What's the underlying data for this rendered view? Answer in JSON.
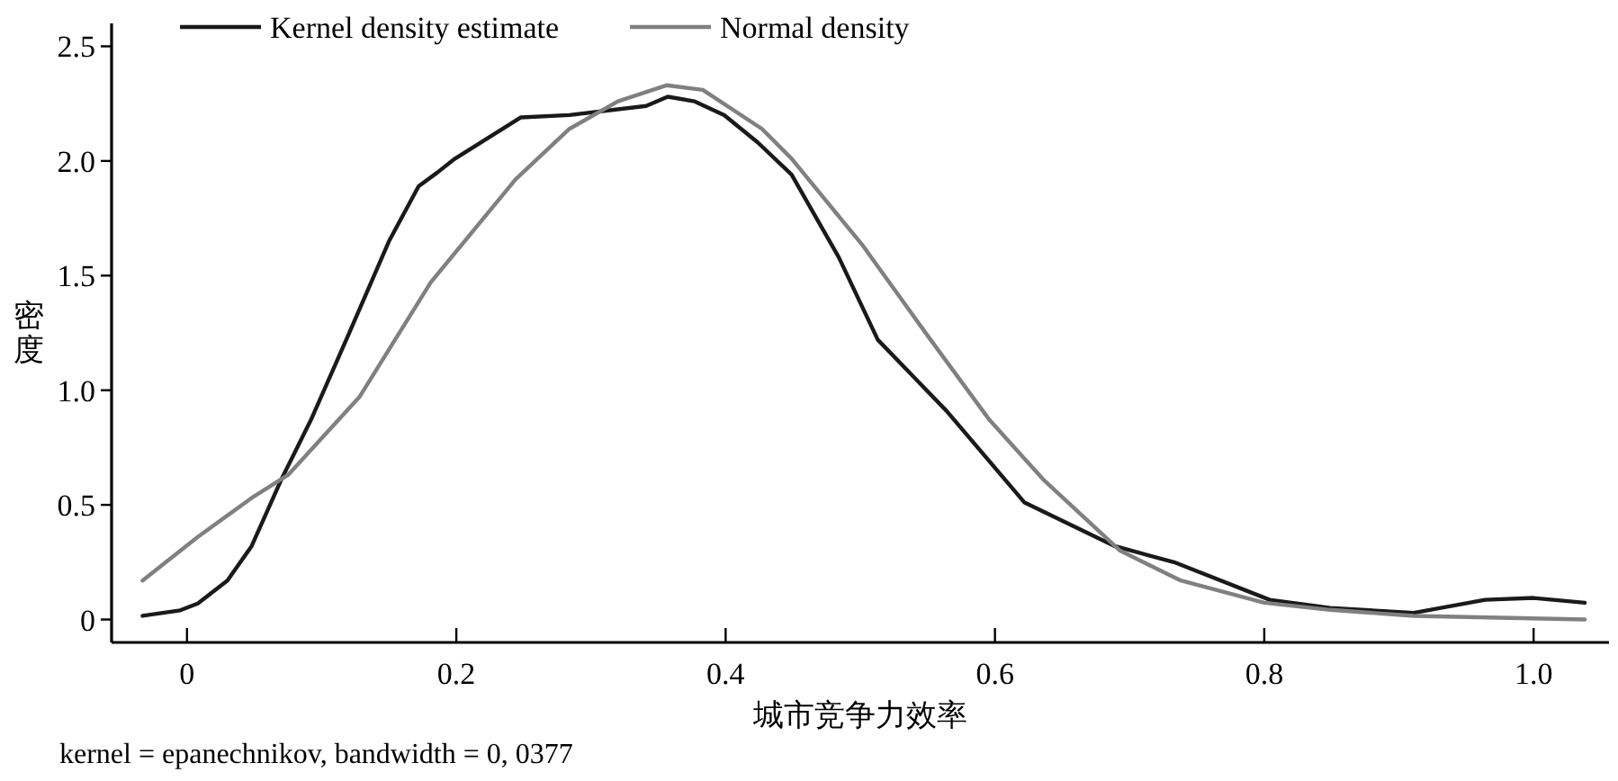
{
  "chart_data": {
    "type": "line",
    "xlabel": "城市竞争力效率",
    "ylabel": "密度",
    "annotations": [
      "kernel = epanechnikov, bandwidth = 0, 0377"
    ],
    "xlim": [
      -0.056,
      1.056
    ],
    "ylim": [
      -0.1,
      2.6
    ],
    "xticks": [
      0,
      0.2,
      0.4,
      0.6,
      0.8,
      {
        "value": 1,
        "label": "1.0"
      }
    ],
    "yticks": [
      0,
      0.5,
      {
        "value": 1,
        "label": "1.0"
      },
      1.5,
      {
        "value": 2,
        "label": "2.0"
      },
      2.5
    ],
    "legend": "top",
    "line_style": "solid",
    "grid": false,
    "series": [
      {
        "name": "Kernel density estimate",
        "color": "#1a1a1a",
        "x": [
          -0.033,
          -0.005,
          0.008,
          0.03,
          0.048,
          0.07,
          0.092,
          0.119,
          0.15,
          0.172,
          0.186,
          0.199,
          0.248,
          0.284,
          0.341,
          0.357,
          0.377,
          0.399,
          0.424,
          0.449,
          0.484,
          0.513,
          0.564,
          0.622,
          0.689,
          0.733,
          0.804,
          0.849,
          0.911,
          0.964,
          1.0,
          1.038
        ],
        "values": [
          0.016,
          0.04,
          0.07,
          0.17,
          0.32,
          0.61,
          0.87,
          1.23,
          1.65,
          1.89,
          1.95,
          2.01,
          2.19,
          2.2,
          2.24,
          2.28,
          2.26,
          2.2,
          2.08,
          1.94,
          1.58,
          1.22,
          0.91,
          0.51,
          0.32,
          0.25,
          0.086,
          0.05,
          0.029,
          0.086,
          0.094,
          0.073
        ]
      },
      {
        "name": "Normal density",
        "color": "#808080",
        "x": [
          -0.033,
          0.008,
          0.048,
          0.075,
          0.128,
          0.181,
          0.244,
          0.284,
          0.32,
          0.356,
          0.383,
          0.427,
          0.449,
          0.502,
          0.551,
          0.596,
          0.636,
          0.693,
          0.738,
          0.8,
          0.849,
          0.911,
          1.038
        ],
        "values": [
          0.17,
          0.36,
          0.53,
          0.63,
          0.97,
          1.47,
          1.92,
          2.14,
          2.26,
          2.33,
          2.31,
          2.14,
          2.01,
          1.63,
          1.23,
          0.87,
          0.61,
          0.3,
          0.17,
          0.073,
          0.042,
          0.016,
          0.0
        ]
      }
    ]
  }
}
